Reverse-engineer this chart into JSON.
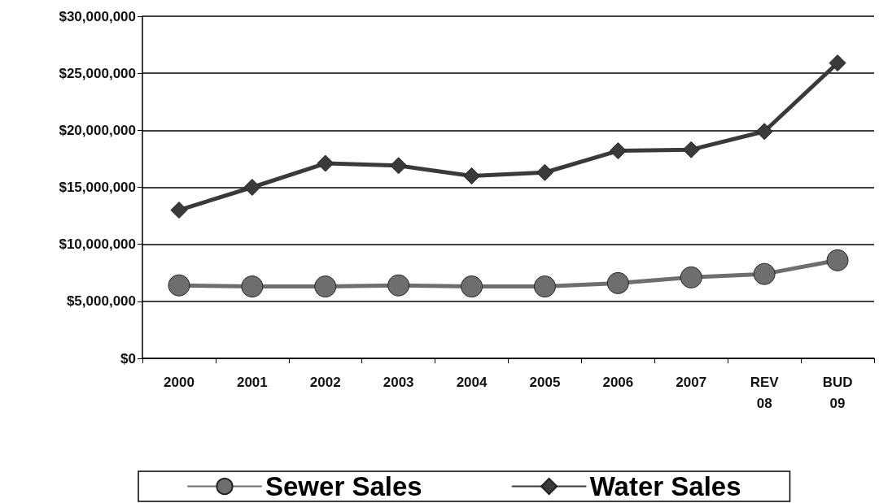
{
  "chart_data": {
    "type": "line",
    "categories": [
      "2000",
      "2001",
      "2002",
      "2003",
      "2004",
      "2005",
      "2006",
      "2007",
      "REV\n08",
      "BUD\n09"
    ],
    "series": [
      {
        "name": "Sewer Sales",
        "color": "#6e6e6e",
        "marker": "circle",
        "values": [
          6400000,
          6300000,
          6300000,
          6400000,
          6300000,
          6300000,
          6600000,
          7100000,
          7400000,
          8600000
        ]
      },
      {
        "name": "Water Sales",
        "color": "#3a3a3a",
        "marker": "diamond",
        "values": [
          13000000,
          15000000,
          17100000,
          16900000,
          16000000,
          16300000,
          18200000,
          18300000,
          19900000,
          25900000
        ]
      }
    ],
    "ylim": [
      0,
      30000000
    ],
    "yticks": [
      {
        "value": 0,
        "label": "$0"
      },
      {
        "value": 5000000,
        "label": "$5,000,000"
      },
      {
        "value": 10000000,
        "label": "$10,000,000"
      },
      {
        "value": 15000000,
        "label": "$15,000,000"
      },
      {
        "value": 20000000,
        "label": "$20,000,000"
      },
      {
        "value": 25000000,
        "label": "$25,000,000"
      },
      {
        "value": 30000000,
        "label": "$30,000,000"
      }
    ],
    "grid": "y",
    "legend": "bottom",
    "line_style": "solid"
  }
}
